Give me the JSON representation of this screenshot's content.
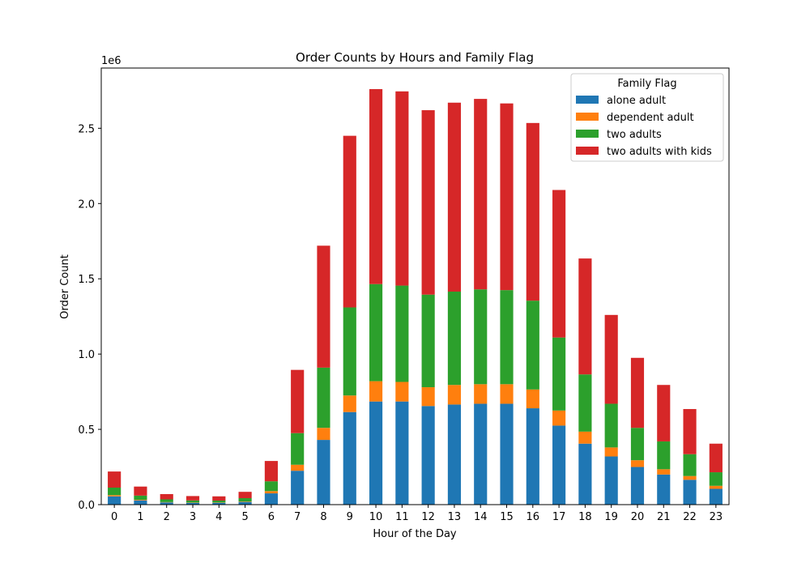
{
  "chart_data": {
    "type": "bar",
    "stacked": true,
    "title": "Order Counts by Hours and Family Flag",
    "xlabel": "Hour of the Day",
    "ylabel": "Order Count",
    "y_scale_label": "1e6",
    "ylim": [
      0,
      2.9
    ],
    "y_ticks": [
      "0.0",
      "0.5",
      "1.0",
      "1.5",
      "2.0",
      "2.5"
    ],
    "y_tick_values": [
      0,
      0.5,
      1.0,
      1.5,
      2.0,
      2.5
    ],
    "grid": false,
    "legend": {
      "title": "Family Flag",
      "placement": "upper right"
    },
    "categories": [
      "0",
      "1",
      "2",
      "3",
      "4",
      "5",
      "6",
      "7",
      "8",
      "9",
      "10",
      "11",
      "12",
      "13",
      "14",
      "15",
      "16",
      "17",
      "18",
      "19",
      "20",
      "21",
      "22",
      "23"
    ],
    "series": [
      {
        "name": "alone adult",
        "color": "#1f77b4",
        "values": [
          0.055,
          0.028,
          0.015,
          0.012,
          0.012,
          0.018,
          0.075,
          0.225,
          0.43,
          0.615,
          0.685,
          0.685,
          0.655,
          0.665,
          0.67,
          0.67,
          0.64,
          0.525,
          0.405,
          0.32,
          0.25,
          0.2,
          0.165,
          0.105
        ]
      },
      {
        "name": "dependent adult",
        "color": "#ff7f0e",
        "values": [
          0.008,
          0.004,
          0.002,
          0.002,
          0.002,
          0.003,
          0.015,
          0.04,
          0.08,
          0.11,
          0.135,
          0.13,
          0.125,
          0.13,
          0.13,
          0.13,
          0.125,
          0.1,
          0.08,
          0.06,
          0.045,
          0.035,
          0.025,
          0.02
        ]
      },
      {
        "name": "two adults",
        "color": "#2ca02c",
        "values": [
          0.05,
          0.028,
          0.018,
          0.014,
          0.013,
          0.022,
          0.065,
          0.21,
          0.4,
          0.585,
          0.645,
          0.64,
          0.615,
          0.62,
          0.63,
          0.625,
          0.59,
          0.485,
          0.38,
          0.29,
          0.215,
          0.185,
          0.145,
          0.09
        ]
      },
      {
        "name": "two adults with kids",
        "color": "#d62728",
        "values": [
          0.107,
          0.06,
          0.035,
          0.029,
          0.028,
          0.042,
          0.135,
          0.42,
          0.81,
          1.14,
          1.295,
          1.29,
          1.225,
          1.255,
          1.265,
          1.24,
          1.18,
          0.98,
          0.77,
          0.59,
          0.465,
          0.375,
          0.3,
          0.19
        ]
      }
    ]
  }
}
